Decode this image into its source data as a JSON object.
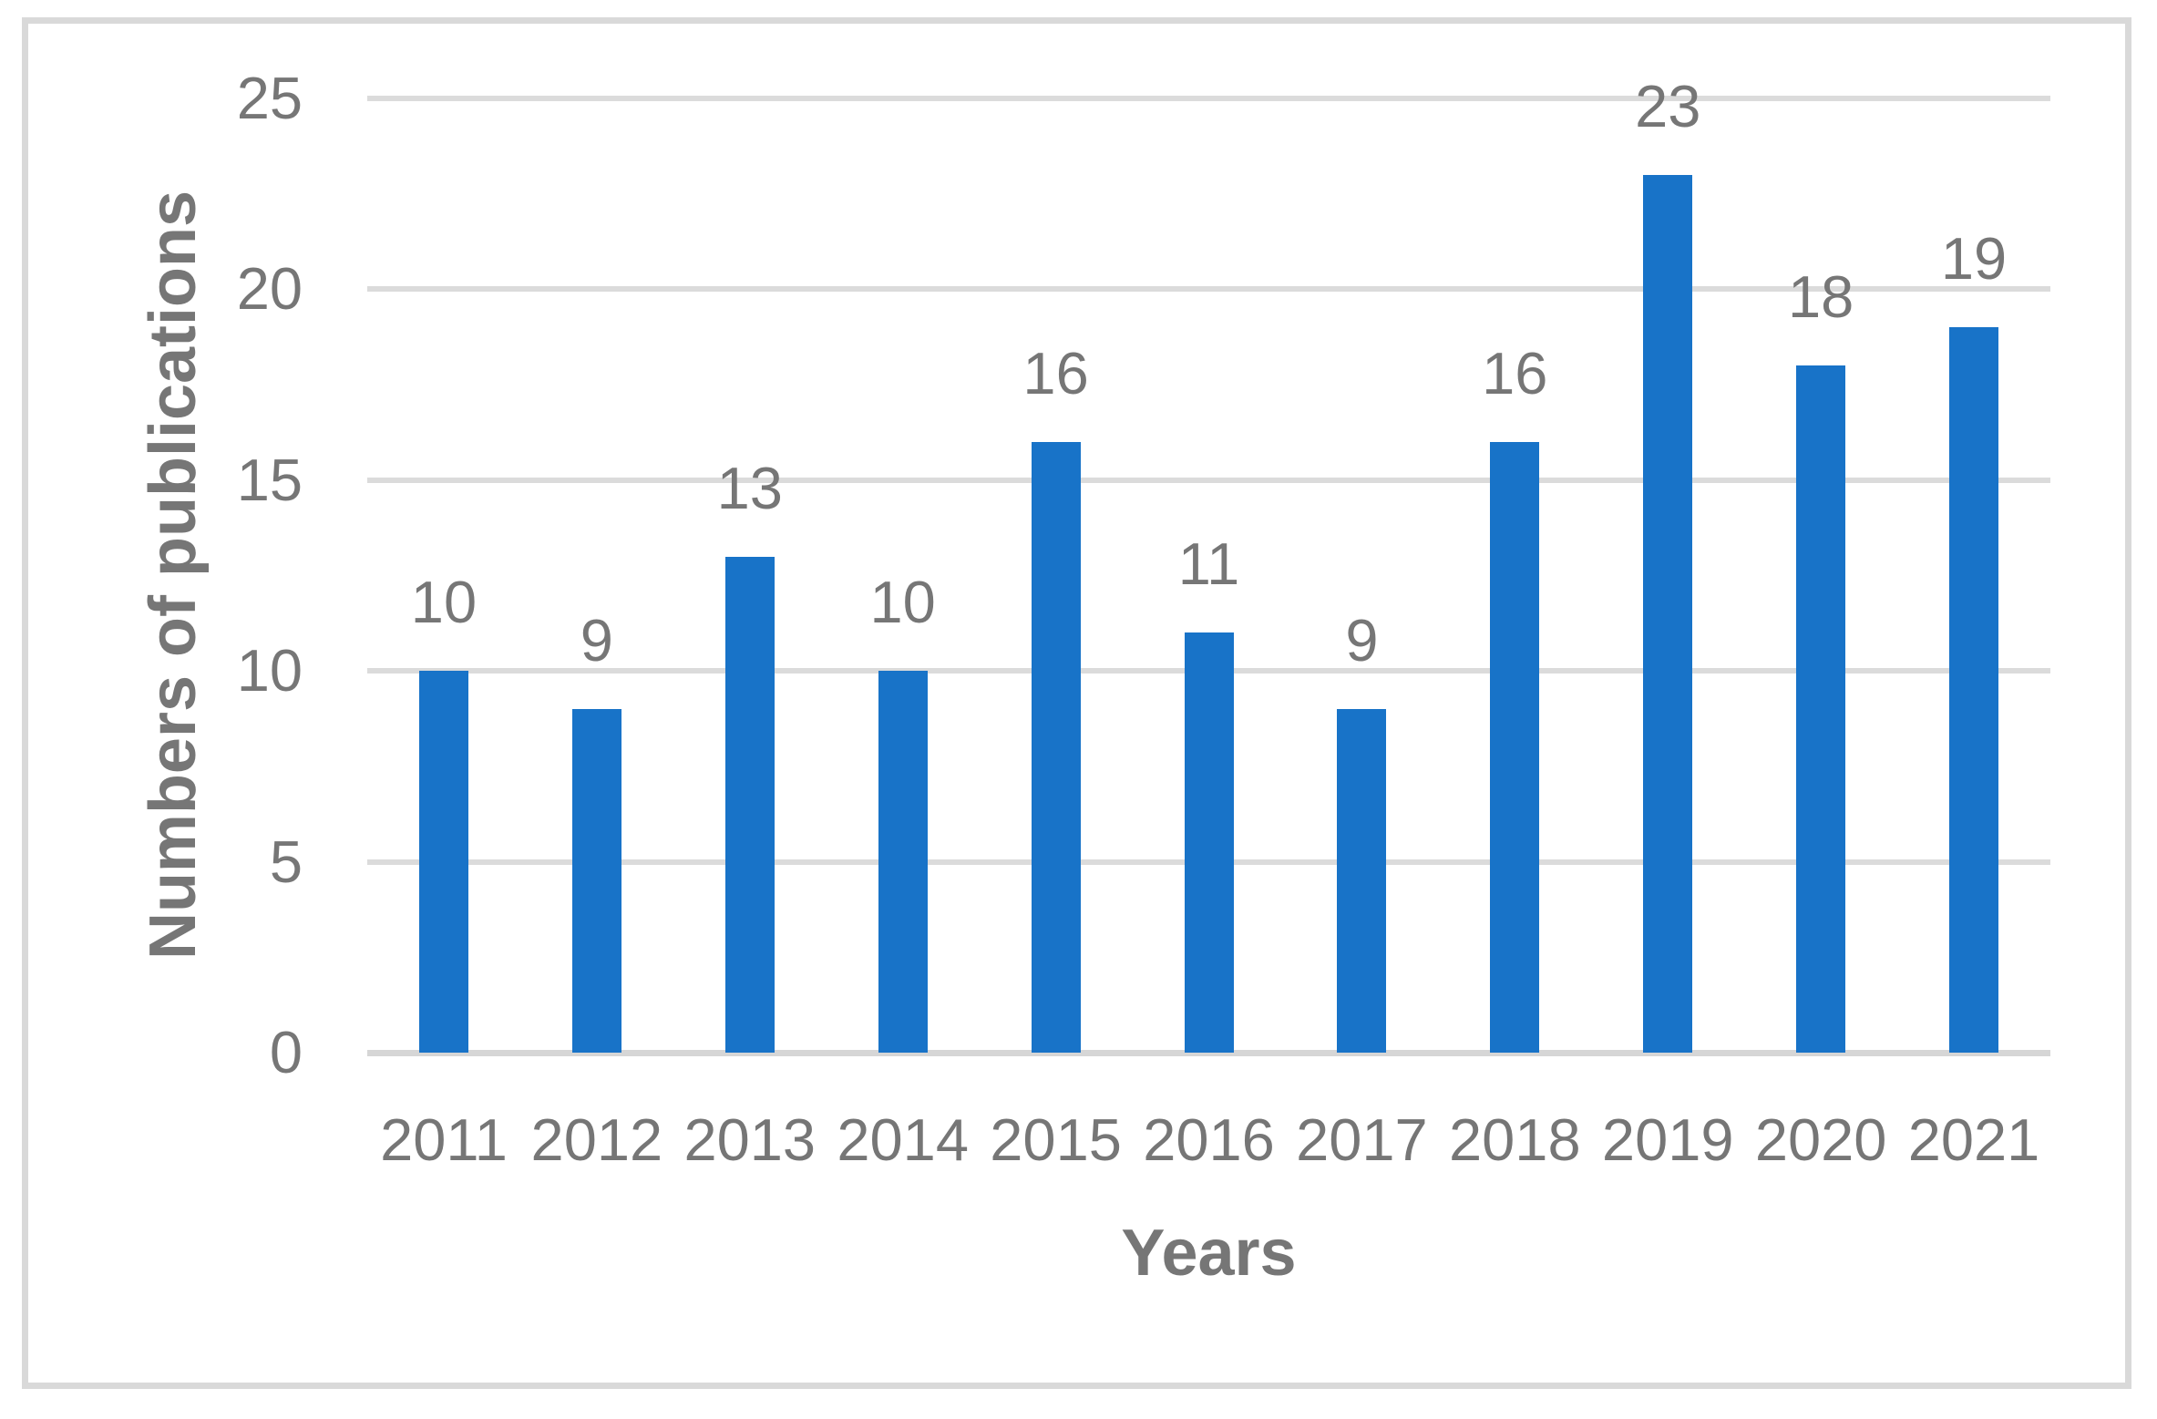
{
  "chart_data": {
    "type": "bar",
    "title": "",
    "xlabel": "Years",
    "ylabel": "Numbers of publications",
    "categories": [
      "2011",
      "2012",
      "2013",
      "2014",
      "2015",
      "2016",
      "2017",
      "2018",
      "2019",
      "2020",
      "2021"
    ],
    "values": [
      10,
      9,
      13,
      10,
      16,
      11,
      9,
      16,
      23,
      18,
      19
    ],
    "data_labels": [
      "10",
      "9",
      "13",
      "10",
      "16",
      "11",
      "9",
      "16",
      "23",
      "18",
      "19"
    ],
    "ylim": [
      0,
      25
    ],
    "yticks": [
      0,
      5,
      10,
      15,
      20,
      25
    ],
    "grid": "horizontal",
    "legend": "none",
    "colors": {
      "bar": "#1873c8",
      "text": "#767676",
      "gridline": "#dbdbdb",
      "axis_line": "#d6d6d6",
      "border": "#d9d9d9"
    }
  }
}
